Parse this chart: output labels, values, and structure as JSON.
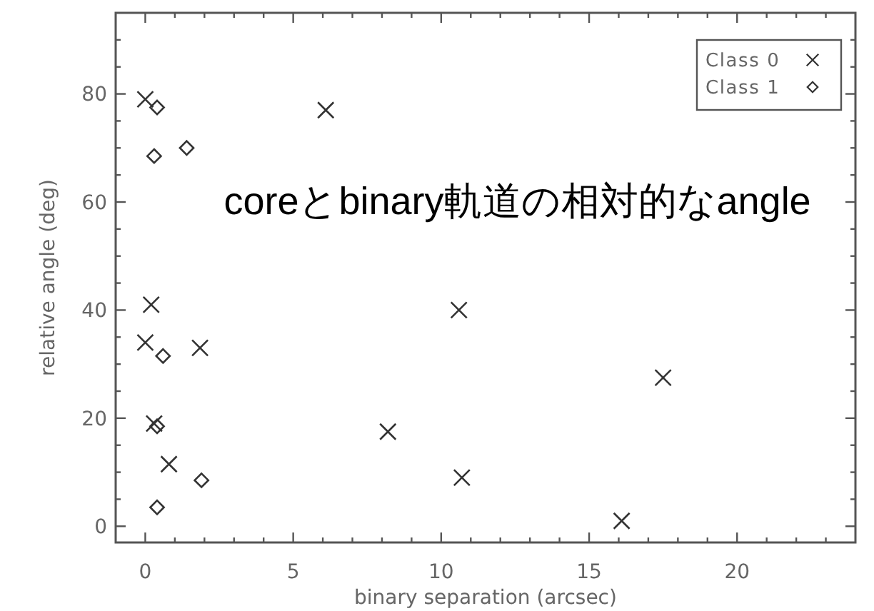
{
  "chart_data": {
    "type": "scatter",
    "xlabel": "binary separation (arcsec)",
    "ylabel": "relative angle (deg)",
    "annotations": [
      "coreとbinary軌道の相対的なangle"
    ],
    "xlim": [
      -1,
      24
    ],
    "xticks": [
      0,
      {
        "value": 1,
        "label": null
      },
      {
        "value": 2,
        "label": null
      },
      {
        "value": 3,
        "label": null
      },
      {
        "value": 4,
        "label": null
      },
      5,
      {
        "value": 6,
        "label": null
      },
      {
        "value": 7,
        "label": null
      },
      {
        "value": 8,
        "label": null
      },
      {
        "value": 9,
        "label": null
      },
      10,
      {
        "value": 11,
        "label": null
      },
      {
        "value": 12,
        "label": null
      },
      {
        "value": 13,
        "label": null
      },
      {
        "value": 14,
        "label": null
      },
      15,
      {
        "value": 16,
        "label": null
      },
      {
        "value": 17,
        "label": null
      },
      {
        "value": 18,
        "label": null
      },
      {
        "value": 19,
        "label": null
      },
      20,
      {
        "value": 21,
        "label": null
      },
      {
        "value": 22,
        "label": null
      },
      {
        "value": 23,
        "label": null
      }
    ],
    "ylim": [
      -3,
      95
    ],
    "yticks": [
      0,
      {
        "value": 5,
        "label": null
      },
      {
        "value": 10,
        "label": null
      },
      {
        "value": 15,
        "label": null
      },
      20,
      {
        "value": 25,
        "label": null
      },
      {
        "value": 30,
        "label": null
      },
      {
        "value": 35,
        "label": null
      },
      40,
      {
        "value": 45,
        "label": null
      },
      {
        "value": 50,
        "label": null
      },
      {
        "value": 55,
        "label": null
      },
      60,
      {
        "value": 65,
        "label": null
      },
      {
        "value": 70,
        "label": null
      },
      {
        "value": 75,
        "label": null
      },
      80,
      {
        "value": 85,
        "label": null
      },
      {
        "value": 90,
        "label": null
      }
    ],
    "legend": "top right",
    "series": [
      {
        "name": "Class 0",
        "color": "#333333",
        "marker": "cross",
        "x": [
          0,
          6.1,
          0.2,
          0,
          1.85,
          0.3,
          0.8,
          8.2,
          10.6,
          10.7,
          17.5,
          16.1
        ],
        "values": [
          79,
          77,
          41,
          34,
          33,
          19,
          11.5,
          17.5,
          40,
          9,
          27.5,
          1
        ]
      },
      {
        "name": "Class 1",
        "color": "#333333",
        "marker": "diamond",
        "x": [
          0.4,
          0.3,
          1.4,
          0.6,
          0.4,
          1.9,
          0.4
        ],
        "values": [
          77.5,
          68.5,
          70,
          31.5,
          18.5,
          8.5,
          3.5
        ]
      }
    ]
  }
}
